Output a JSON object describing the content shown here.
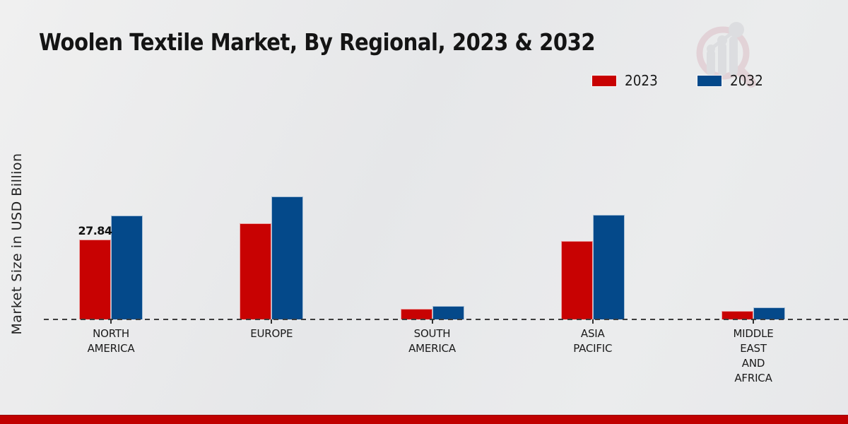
{
  "title": "Woolen Textile Market, By Regional, 2023 & 2032",
  "y_axis_label": "Market Size in USD Billion",
  "legend": {
    "items": [
      {
        "label": "2023",
        "color": "#c80202"
      },
      {
        "label": "2032",
        "color": "#04498a"
      }
    ]
  },
  "watermark": {
    "name": "market-research-magnifier-logo",
    "ring_color": "#dcbfc6",
    "bars_color": "#d1d2d6"
  },
  "footer": {
    "strip_color": "#c00000"
  },
  "chart_data": {
    "type": "bar",
    "title": "Woolen Textile Market, By Regional, 2023 & 2032",
    "xlabel": "",
    "ylabel": "Market Size in USD Billion",
    "categories": [
      "NORTH AMERICA",
      "EUROPE",
      "SOUTH AMERICA",
      "ASIA PACIFIC",
      "MIDDLE EAST AND AFRICA"
    ],
    "category_label_lines": [
      [
        "NORTH",
        "AMERICA"
      ],
      [
        "EUROPE"
      ],
      [
        "SOUTH",
        "AMERICA"
      ],
      [
        "ASIA",
        "PACIFIC"
      ],
      [
        "MIDDLE",
        "EAST",
        "AND",
        "AFRICA"
      ]
    ],
    "series": [
      {
        "name": "2023",
        "color": "#c80202",
        "values": [
          27.84,
          33.5,
          3.7,
          27.35,
          3.0
        ]
      },
      {
        "name": "2032",
        "color": "#04498a",
        "values": [
          36.2,
          42.9,
          4.7,
          36.5,
          4.2
        ]
      }
    ],
    "data_labels": [
      {
        "series_index": 0,
        "category_index": 0,
        "text": "27.84"
      }
    ],
    "ylim": [
      0,
      48
    ],
    "grid": false,
    "legend_position": "top-right",
    "x_axis_style": "dashed"
  }
}
